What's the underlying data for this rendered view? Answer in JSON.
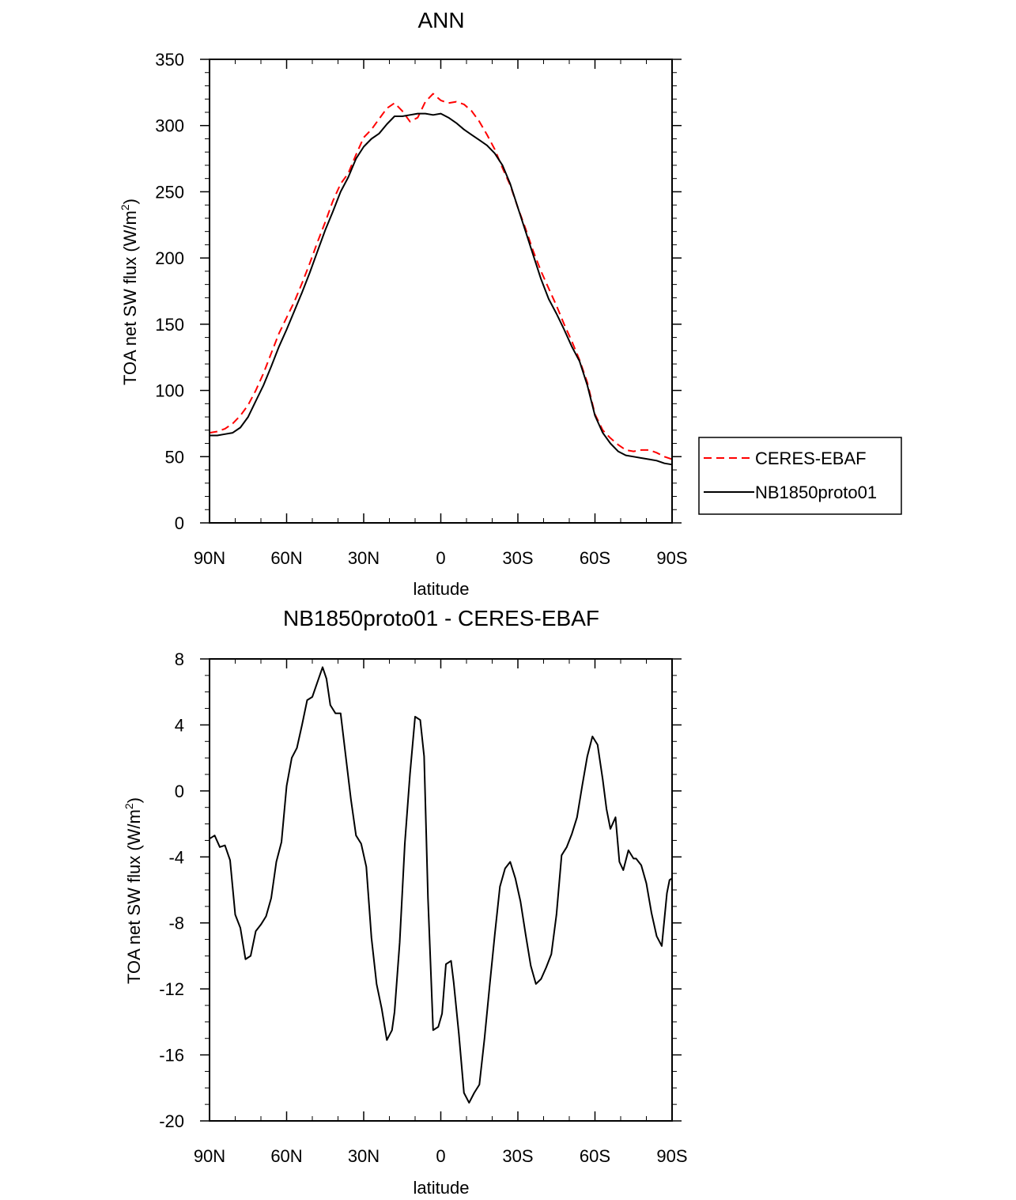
{
  "chart_data": [
    {
      "type": "line",
      "title": "ANN",
      "xlabel": "latitude",
      "ylabel_main": "TOA net SW flux (W/m",
      "ylabel_sup": "2",
      "ylabel_close": ")",
      "xlim": [
        90,
        -90
      ],
      "ylim": [
        0,
        350
      ],
      "xticks": [
        90,
        60,
        30,
        0,
        -30,
        -60,
        -90
      ],
      "xtick_labels": [
        "90N",
        "60N",
        "30N",
        "0",
        "30S",
        "60S",
        "90S"
      ],
      "yticks": [
        0,
        50,
        100,
        150,
        200,
        250,
        300,
        350
      ],
      "ytick_labels": [
        "0",
        "50",
        "100",
        "150",
        "200",
        "250",
        "300",
        "350"
      ],
      "grid": false,
      "legend": "right",
      "series": [
        {
          "name": "CERES-EBAF",
          "color": "#ff0000",
          "dash": "dashed",
          "x": [
            90,
            87,
            84,
            81,
            78,
            75,
            72,
            69,
            66,
            63,
            60,
            57,
            54,
            51,
            48,
            45,
            42,
            39,
            36,
            33,
            30,
            27,
            24,
            21,
            18,
            15,
            12,
            9,
            6,
            3,
            0,
            -3,
            -6,
            -9,
            -12,
            -15,
            -18,
            -21,
            -24,
            -27,
            -30,
            -33,
            -36,
            -39,
            -42,
            -45,
            -48,
            -51,
            -54,
            -57,
            -60,
            -63,
            -66,
            -69,
            -72,
            -75,
            -78,
            -81,
            -84,
            -87,
            -90
          ],
          "y": [
            68,
            69,
            71,
            75,
            81,
            89,
            100,
            113,
            128,
            143,
            155,
            167,
            181,
            196,
            212,
            227,
            243,
            256,
            264,
            278,
            291,
            297,
            305,
            313,
            317,
            311,
            303,
            306,
            318,
            324,
            319,
            317,
            318,
            316,
            311,
            303,
            293,
            282,
            268,
            255,
            238,
            222,
            205,
            190,
            177,
            164,
            150,
            137,
            123,
            106,
            82,
            70,
            64,
            59,
            55,
            54,
            55,
            55,
            53,
            50,
            48
          ]
        },
        {
          "name": "NB1850proto01",
          "color": "#000000",
          "dash": "solid",
          "x": [
            90,
            87,
            84,
            81,
            78,
            75,
            72,
            69,
            66,
            63,
            60,
            57,
            54,
            51,
            48,
            45,
            42,
            39,
            36,
            33,
            30,
            27,
            24,
            21,
            18,
            15,
            12,
            9,
            6,
            3,
            0,
            -3,
            -6,
            -9,
            -12,
            -15,
            -18,
            -21,
            -24,
            -27,
            -30,
            -33,
            -36,
            -39,
            -42,
            -45,
            -48,
            -51,
            -54,
            -57,
            -60,
            -63,
            -66,
            -69,
            -72,
            -75,
            -78,
            -81,
            -84,
            -87,
            -90
          ],
          "y": [
            66,
            66,
            67,
            68,
            72,
            80,
            92,
            104,
            118,
            133,
            146,
            160,
            174,
            189,
            205,
            221,
            235,
            250,
            261,
            275,
            284,
            290,
            294,
            301,
            307,
            307,
            308,
            309,
            309,
            308,
            309,
            306,
            302,
            297,
            293,
            289,
            285,
            279,
            270,
            256,
            238,
            220,
            202,
            184,
            169,
            158,
            146,
            133,
            122,
            104,
            81,
            68,
            60,
            54,
            51,
            50,
            49,
            48,
            47,
            45,
            44
          ]
        }
      ]
    },
    {
      "type": "line",
      "title": "NB1850proto01 - CERES-EBAF",
      "xlabel": "latitude",
      "ylabel_main": "TOA net SW flux (W/m",
      "ylabel_sup": "2",
      "ylabel_close": ")",
      "xlim": [
        90,
        -90
      ],
      "ylim": [
        -20,
        8
      ],
      "xticks": [
        90,
        60,
        30,
        0,
        -30,
        -60,
        -90
      ],
      "xtick_labels": [
        "90N",
        "60N",
        "30N",
        "0",
        "30S",
        "60S",
        "90S"
      ],
      "yticks": [
        -20,
        -16,
        -12,
        -8,
        -4,
        0,
        4,
        8
      ],
      "ytick_labels": [
        "-20",
        "-16",
        "-12",
        "-8",
        "-4",
        "0",
        "4",
        "8"
      ],
      "grid": false,
      "series": [
        {
          "name": "",
          "color": "#000000",
          "dash": "solid",
          "x": [
            90,
            88,
            86,
            84,
            82,
            80,
            78,
            76,
            74,
            72,
            70,
            68,
            66,
            64,
            62,
            60,
            58,
            56,
            54,
            52,
            50,
            48,
            46,
            44.5,
            43,
            41,
            39,
            37,
            35,
            33,
            31,
            29,
            27,
            25,
            23,
            21,
            19,
            18,
            16,
            14,
            12,
            10,
            8,
            6.5,
            5,
            3,
            1,
            -0.5,
            -2,
            -4,
            -5,
            -7,
            -9,
            -11,
            -13,
            -15,
            -17,
            -19,
            -21,
            -23,
            -25,
            -27,
            -29,
            -31,
            -33,
            -35,
            -37,
            -39,
            -41,
            -43,
            -45,
            -47,
            -49,
            -51,
            -53,
            -55,
            -57,
            -59,
            -61,
            -63,
            -64.5,
            -66,
            -68,
            -69.5,
            -71,
            -73,
            -75,
            -76,
            -78,
            -80,
            -82,
            -84,
            -86,
            -88,
            -89,
            -90
          ],
          "y": [
            -2.9,
            -2.7,
            -3.4,
            -3.3,
            -4.2,
            -7.5,
            -8.3,
            -10.2,
            -10,
            -8.5,
            -8.1,
            -7.6,
            -6.5,
            -4.3,
            -3.1,
            0.3,
            2.0,
            2.6,
            4.0,
            5.5,
            5.7,
            6.6,
            7.5,
            6.8,
            5.2,
            4.7,
            4.7,
            2.1,
            -0.5,
            -2.7,
            -3.2,
            -4.6,
            -8.9,
            -11.7,
            -13.2,
            -15.1,
            -14.5,
            -13.4,
            -9.2,
            -3.2,
            1.0,
            4.5,
            4.3,
            2.1,
            -6.5,
            -14.5,
            -14.3,
            -13.5,
            -10.5,
            -10.3,
            -11.6,
            -14.7,
            -18.3,
            -18.9,
            -18.3,
            -17.8,
            -15.0,
            -11.8,
            -8.7,
            -5.8,
            -4.7,
            -4.3,
            -5.3,
            -6.7,
            -8.7,
            -10.6,
            -11.7,
            -11.4,
            -10.7,
            -9.9,
            -7.5,
            -3.9,
            -3.4,
            -2.6,
            -1.6,
            0.3,
            2.1,
            3.3,
            2.8,
            0.7,
            -1.1,
            -2.3,
            -1.6,
            -4.3,
            -4.8,
            -3.6,
            -4.1,
            -4.1,
            -4.5,
            -5.6,
            -7.4,
            -8.8,
            -9.4,
            -6.2,
            -5.4,
            -5.3
          ]
        }
      ]
    }
  ]
}
